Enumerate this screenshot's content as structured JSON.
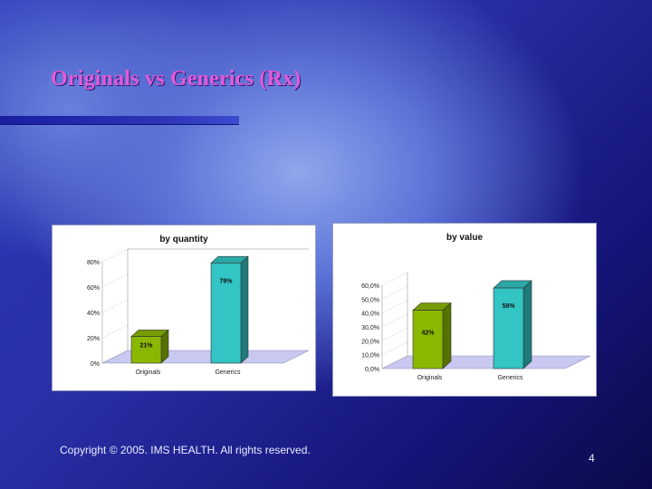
{
  "slide": {
    "title": "Originals vs Generics (Rx)",
    "copyright": "Copyright © 2005. IMS HEALTH. All rights reserved.",
    "page_number": "4"
  },
  "chart_data": [
    {
      "type": "bar",
      "title": "by quantity",
      "categories": [
        "Originals",
        "Generics"
      ],
      "values": [
        21,
        79
      ],
      "value_labels": [
        "21%",
        "79%"
      ],
      "colors": [
        "#8ab800",
        "#33c4c4"
      ],
      "yticks": [
        "0%",
        "20%",
        "40%",
        "60%",
        "80%"
      ],
      "ylim": [
        0,
        80
      ],
      "xlabel": "",
      "ylabel": ""
    },
    {
      "type": "bar",
      "title": "by value",
      "categories": [
        "Originals",
        "Generics"
      ],
      "values": [
        42,
        58
      ],
      "value_labels": [
        "42%",
        "58%"
      ],
      "colors": [
        "#8ab800",
        "#33c4c4"
      ],
      "yticks": [
        "0,0%",
        "10,0%",
        "20,0%",
        "30,0%",
        "40,0%",
        "50,0%",
        "60,0%"
      ],
      "ylim": [
        0,
        60
      ],
      "xlabel": "",
      "ylabel": ""
    }
  ]
}
